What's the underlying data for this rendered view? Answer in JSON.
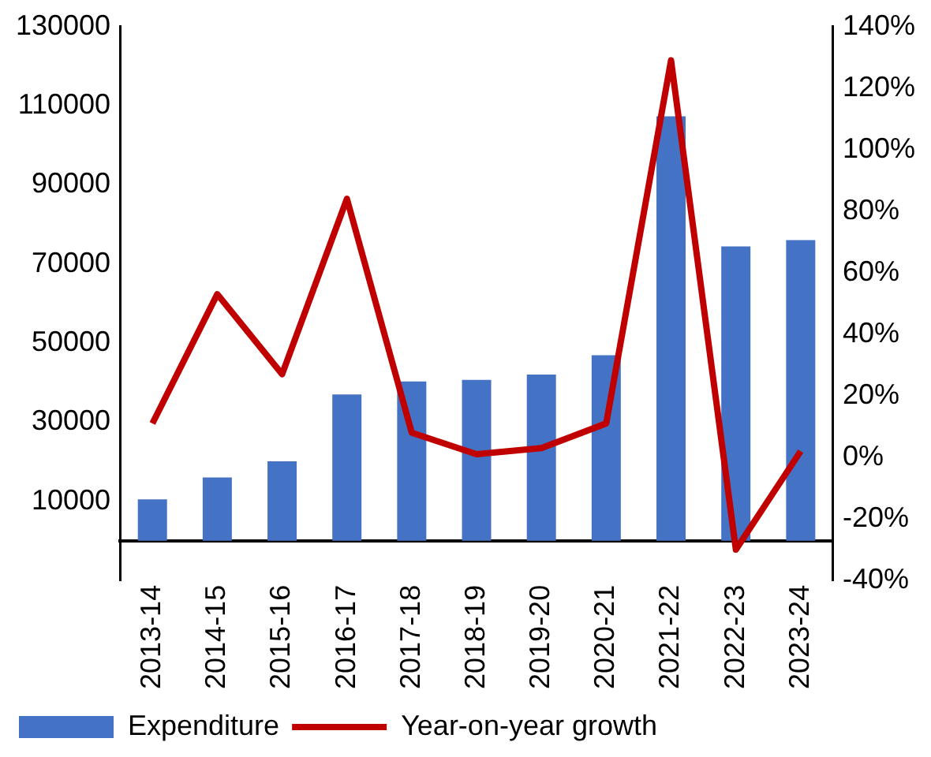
{
  "chart_data": {
    "type": "bar",
    "categories": [
      "2013-14",
      "2014-15",
      "2015-16",
      "2016-17",
      "2017-18",
      "2018-19",
      "2019-20",
      "2020-21",
      "2021-22",
      "2022-23",
      "2023-24"
    ],
    "series": [
      {
        "name": "Expenditure",
        "color": "#4472c4",
        "values": [
          10500,
          16000,
          20100,
          37000,
          40300,
          40700,
          42000,
          46900,
          107300,
          74400,
          76000
        ]
      },
      {
        "name": "Year-on-year growth",
        "type": "line",
        "axis": "y2",
        "color": "#c00000",
        "values": [
          11,
          53,
          27,
          84,
          8,
          1,
          3,
          11,
          129,
          -30,
          2
        ]
      }
    ],
    "ylim": [
      -10000,
      130000
    ],
    "yticks": [
      10000,
      30000,
      50000,
      70000,
      90000,
      110000,
      130000
    ],
    "y2lim": [
      -40,
      140
    ],
    "y2ticks": [
      {
        "value": -40,
        "label": "-40%"
      },
      {
        "value": -20,
        "label": "-20%"
      },
      {
        "value": 0,
        "label": "0%"
      },
      {
        "value": 20,
        "label": "20%"
      },
      {
        "value": 40,
        "label": "40%"
      },
      {
        "value": 60,
        "label": "60%"
      },
      {
        "value": 80,
        "label": "80%"
      },
      {
        "value": 100,
        "label": "100%"
      },
      {
        "value": 120,
        "label": "120%"
      },
      {
        "value": 140,
        "label": "140%"
      }
    ],
    "grid": false,
    "legend": "bottom",
    "marker": "none",
    "line_style": "solid"
  }
}
